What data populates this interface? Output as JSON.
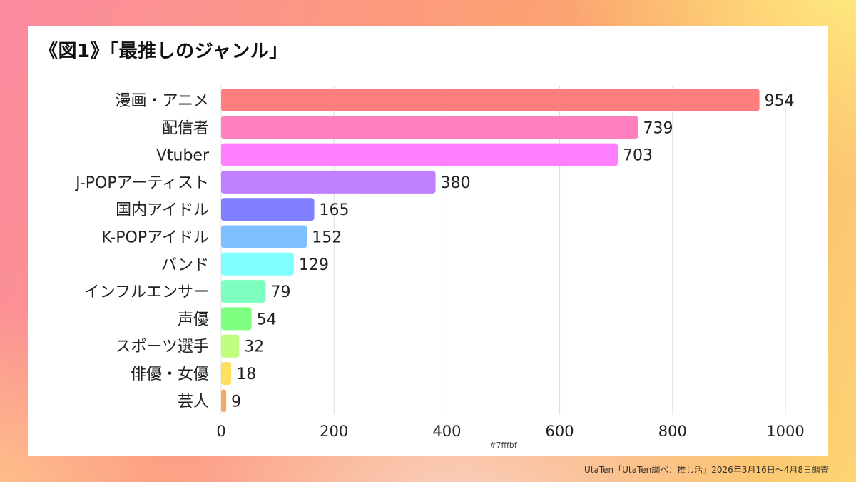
{
  "title": "《図1》「最推しのジャンル」",
  "source": "UtaTen「UtaTen調べ：推し活」2026年3月16日〜4月8日調査",
  "chart_data": {
    "type": "bar",
    "orientation": "horizontal",
    "title": "《図1》「最推しのジャンル」",
    "categories": [
      "漫画・アニメ",
      "配信者",
      "Vtuber",
      "J-POPアーティスト",
      "国内アイドル",
      "K-POPアイドル",
      "バンド",
      "インフルエンサー",
      "声優",
      "スポーツ選手",
      "俳優・女優",
      "芸人"
    ],
    "values": [
      954,
      739,
      703,
      380,
      165,
      152,
      129,
      79,
      54,
      32,
      18,
      9
    ],
    "colors": [
      "#ff7f7f",
      "#ff7fbf",
      "#ff7fff",
      "#bf7fff",
      "#7f7fff",
      "#7fbfff",
      "#7fffff",
      "#7fffbf",
      "#7fff7f",
      "#bfff7f",
      "#ffdf5f",
      "#f5a860"
    ],
    "xlim": [
      0,
      1000
    ],
    "xticks": [
      0,
      200,
      400,
      600,
      800,
      1000
    ],
    "xlabel": "#7fffbf",
    "ylabel": "",
    "grid": true,
    "legend": "none"
  }
}
